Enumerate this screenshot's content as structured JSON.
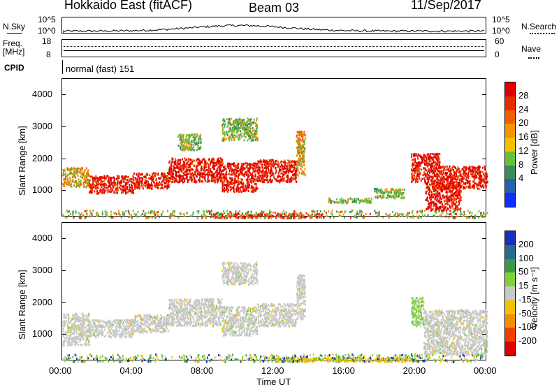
{
  "header": {
    "title": "Hokkaido East (fitACF)",
    "beam": "Beam 03",
    "date": "11/Sep/2017"
  },
  "nsky_panel": {
    "left_label": "N.Sky",
    "right_label": "N.Search",
    "left_ticks": [
      "10^5",
      "10^0"
    ],
    "right_ticks": [
      "10^5",
      "10^0"
    ],
    "right_legend_style": "dotted"
  },
  "freq_panel": {
    "left_label_line1": "Freq.",
    "left_label_line2": "[MHz]",
    "right_label": "Nave",
    "left_ticks": [
      "18",
      "8"
    ],
    "right_ticks": [
      "60",
      "0"
    ]
  },
  "cpid_panel": {
    "label": "CPID",
    "mode": "normal (fast) 151"
  },
  "chart_data": [
    {
      "type": "heatmap",
      "name": "power",
      "ylabel": "Slant Range [km]",
      "yticks": [
        "1000",
        "2000",
        "3000",
        "4000"
      ],
      "ylim": [
        180,
        4500
      ],
      "xlim": [
        0,
        24
      ],
      "colorbar": {
        "label": "Power [dB]",
        "ticks": [
          "4",
          "8",
          "12",
          "16",
          "20",
          "24",
          "28"
        ],
        "range": [
          0,
          32
        ],
        "colors": [
          "#1030ff",
          "#2a5faa",
          "#3c8c5a",
          "#6abf3a",
          "#f2c200",
          "#f49400",
          "#f06000",
          "#e82a00",
          "#e00000"
        ]
      },
      "bands": [
        {
          "x": [
            0.0,
            1.5
          ],
          "y": [
            1150,
            1750
          ],
          "level": "mid"
        },
        {
          "x": [
            1.5,
            4.0
          ],
          "y": [
            950,
            1500
          ],
          "level": "high"
        },
        {
          "x": [
            4.0,
            6.0
          ],
          "y": [
            1100,
            1600
          ],
          "level": "high"
        },
        {
          "x": [
            6.0,
            9.0
          ],
          "y": [
            1300,
            2050
          ],
          "level": "high"
        },
        {
          "x": [
            9.0,
            11.0
          ],
          "y": [
            1000,
            1900
          ],
          "level": "high"
        },
        {
          "x": [
            11.0,
            13.2
          ],
          "y": [
            1300,
            2000
          ],
          "level": "high"
        },
        {
          "x": [
            13.2,
            13.7
          ],
          "y": [
            1500,
            2900
          ],
          "level": "mid"
        },
        {
          "x": [
            9.0,
            11.0
          ],
          "y": [
            2600,
            3300
          ],
          "level": "low"
        },
        {
          "x": [
            6.5,
            7.8
          ],
          "y": [
            2300,
            2800
          ],
          "level": "low"
        },
        {
          "x": [
            19.7,
            21.3
          ],
          "y": [
            1300,
            2200
          ],
          "level": "high"
        },
        {
          "x": [
            20.5,
            22.5
          ],
          "y": [
            400,
            1300
          ],
          "level": "high"
        },
        {
          "x": [
            21.3,
            24.0
          ],
          "y": [
            1100,
            1800
          ],
          "level": "high"
        },
        {
          "x": [
            8.5,
            14.8
          ],
          "y": [
            180,
            320
          ],
          "level": "high"
        },
        {
          "x": [
            15.0,
            17.5
          ],
          "y": [
            650,
            800
          ],
          "level": "low"
        },
        {
          "x": [
            17.6,
            19.3
          ],
          "y": [
            800,
            1100
          ],
          "level": "low"
        },
        {
          "x": [
            0.0,
            24.0
          ],
          "y": [
            180,
            420
          ],
          "level": "mixed"
        }
      ]
    },
    {
      "type": "heatmap",
      "name": "velocity",
      "ylabel": "Slant Range [km]",
      "yticks": [
        "1000",
        "2000",
        "3000",
        "4000"
      ],
      "ylim": [
        180,
        4500
      ],
      "xlim": [
        0,
        24
      ],
      "colorbar": {
        "label": "Velocity [m s⁻¹]",
        "ticks": [
          "200",
          "100",
          "50",
          "15",
          "-15",
          "-50",
          "-100",
          "-200"
        ],
        "range": [
          -250,
          250
        ],
        "colors": [
          "#1a2fbf",
          "#2a6a8a",
          "#3a9a4a",
          "#7fd23a",
          "#c8c8c8",
          "#f2c200",
          "#f09000",
          "#f04000",
          "#e00000"
        ]
      },
      "bands": [
        {
          "x": [
            0.0,
            1.5
          ],
          "y": [
            700,
            1700
          ],
          "level": "ground"
        },
        {
          "x": [
            1.5,
            4.0
          ],
          "y": [
            950,
            1500
          ],
          "level": "ground"
        },
        {
          "x": [
            4.0,
            6.0
          ],
          "y": [
            1100,
            1650
          ],
          "level": "ground"
        },
        {
          "x": [
            6.0,
            9.0
          ],
          "y": [
            1300,
            2150
          ],
          "level": "ground"
        },
        {
          "x": [
            9.0,
            11.0
          ],
          "y": [
            1000,
            1900
          ],
          "level": "ground"
        },
        {
          "x": [
            11.0,
            13.2
          ],
          "y": [
            1300,
            2000
          ],
          "level": "ground"
        },
        {
          "x": [
            13.2,
            13.7
          ],
          "y": [
            1500,
            2900
          ],
          "level": "ground"
        },
        {
          "x": [
            9.0,
            11.0
          ],
          "y": [
            2600,
            3300
          ],
          "level": "ground"
        },
        {
          "x": [
            19.7,
            20.4
          ],
          "y": [
            1300,
            2200
          ],
          "level": "green"
        },
        {
          "x": [
            20.4,
            24.0
          ],
          "y": [
            400,
            1800
          ],
          "level": "ground"
        },
        {
          "x": [
            12.0,
            20.0
          ],
          "y": [
            180,
            320
          ],
          "level": "yellow"
        },
        {
          "x": [
            0.0,
            24.0
          ],
          "y": [
            180,
            420
          ],
          "level": "mixed"
        }
      ]
    }
  ],
  "time_axis": {
    "ticks": [
      "00:00",
      "04:00",
      "08:00",
      "12:00",
      "16:00",
      "20:00",
      "00:00"
    ],
    "label": "Time UT"
  }
}
